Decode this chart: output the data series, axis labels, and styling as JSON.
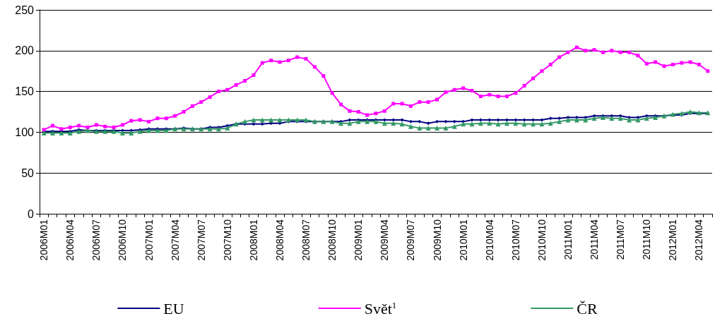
{
  "chart_data": {
    "type": "line",
    "categories": [
      "2006M01",
      null,
      null,
      "2006M04",
      null,
      null,
      "2006M07",
      null,
      null,
      "2006M10",
      null,
      null,
      "2007M01",
      null,
      null,
      "2007M04",
      null,
      null,
      "2007M07",
      null,
      null,
      "2007M10",
      null,
      null,
      "2008M01",
      null,
      null,
      "2008M04",
      null,
      null,
      "2008M07",
      null,
      null,
      "2008M10",
      null,
      null,
      "2009M01",
      null,
      null,
      "2009M04",
      null,
      null,
      "2009M07",
      null,
      null,
      "2009M10",
      null,
      null,
      "2010M01",
      null,
      null,
      "2010M04",
      null,
      null,
      "2010M07",
      null,
      null,
      "2010M10",
      null,
      null,
      "2011M01",
      null,
      null,
      "2011M04",
      null,
      null,
      "2011M07",
      null,
      null,
      "2011M10",
      null,
      null,
      "2012M01",
      null,
      null,
      "2012M04",
      null
    ],
    "series": [
      {
        "name": "EU",
        "color": "#000080",
        "marker": "diamond",
        "values": [
          101,
          101,
          101,
          101,
          103,
          102,
          102,
          102,
          102,
          102,
          102,
          103,
          104,
          104,
          104,
          104,
          105,
          104,
          104,
          106,
          106,
          108,
          110,
          110,
          110,
          110,
          111,
          111,
          113,
          113,
          113,
          113,
          113,
          113,
          113,
          115,
          115,
          115,
          115,
          115,
          115,
          115,
          113,
          113,
          111,
          113,
          113,
          113,
          113,
          115,
          115,
          115,
          115,
          115,
          115,
          115,
          115,
          115,
          117,
          117,
          118,
          118,
          118,
          120,
          120,
          120,
          120,
          118,
          118,
          120,
          120,
          120,
          121,
          121,
          123,
          123,
          123
        ]
      },
      {
        "name": "Svět$^{1}$",
        "color": "#ff00ff",
        "marker": "square",
        "values": [
          103,
          108,
          104,
          106,
          108,
          106,
          109,
          107,
          106,
          109,
          114,
          115,
          113,
          117,
          117,
          120,
          125,
          132,
          137,
          143,
          150,
          152,
          158,
          163,
          170,
          185,
          188,
          186,
          188,
          192,
          190,
          180,
          169,
          148,
          134,
          126,
          125,
          121,
          123,
          126,
          135,
          135,
          132,
          137,
          137,
          140,
          149,
          152,
          154,
          151,
          144,
          146,
          144,
          144,
          148,
          157,
          166,
          175,
          183,
          192,
          198,
          204,
          200,
          201,
          198,
          200,
          198,
          198,
          194,
          184,
          186,
          181,
          183,
          185,
          186,
          183,
          175
        ]
      },
      {
        "name": "ČR",
        "color": "#339966",
        "marker": "triangle",
        "values": [
          99,
          99,
          99,
          99,
          101,
          102,
          101,
          101,
          101,
          99,
          99,
          101,
          102,
          102,
          102,
          104,
          104,
          104,
          104,
          104,
          104,
          105,
          110,
          113,
          115,
          115,
          115,
          115,
          115,
          115,
          115,
          113,
          113,
          113,
          111,
          111,
          113,
          113,
          113,
          111,
          111,
          110,
          107,
          105,
          105,
          105,
          105,
          107,
          110,
          110,
          111,
          111,
          110,
          111,
          111,
          110,
          110,
          110,
          111,
          113,
          115,
          115,
          115,
          117,
          118,
          117,
          117,
          115,
          115,
          117,
          118,
          120,
          122,
          123,
          125,
          124,
          124
        ]
      }
    ],
    "ylim": [
      0,
      250
    ],
    "yticks": [
      0,
      50,
      100,
      150,
      200,
      250
    ],
    "grid": "y",
    "legend": "bottom"
  }
}
